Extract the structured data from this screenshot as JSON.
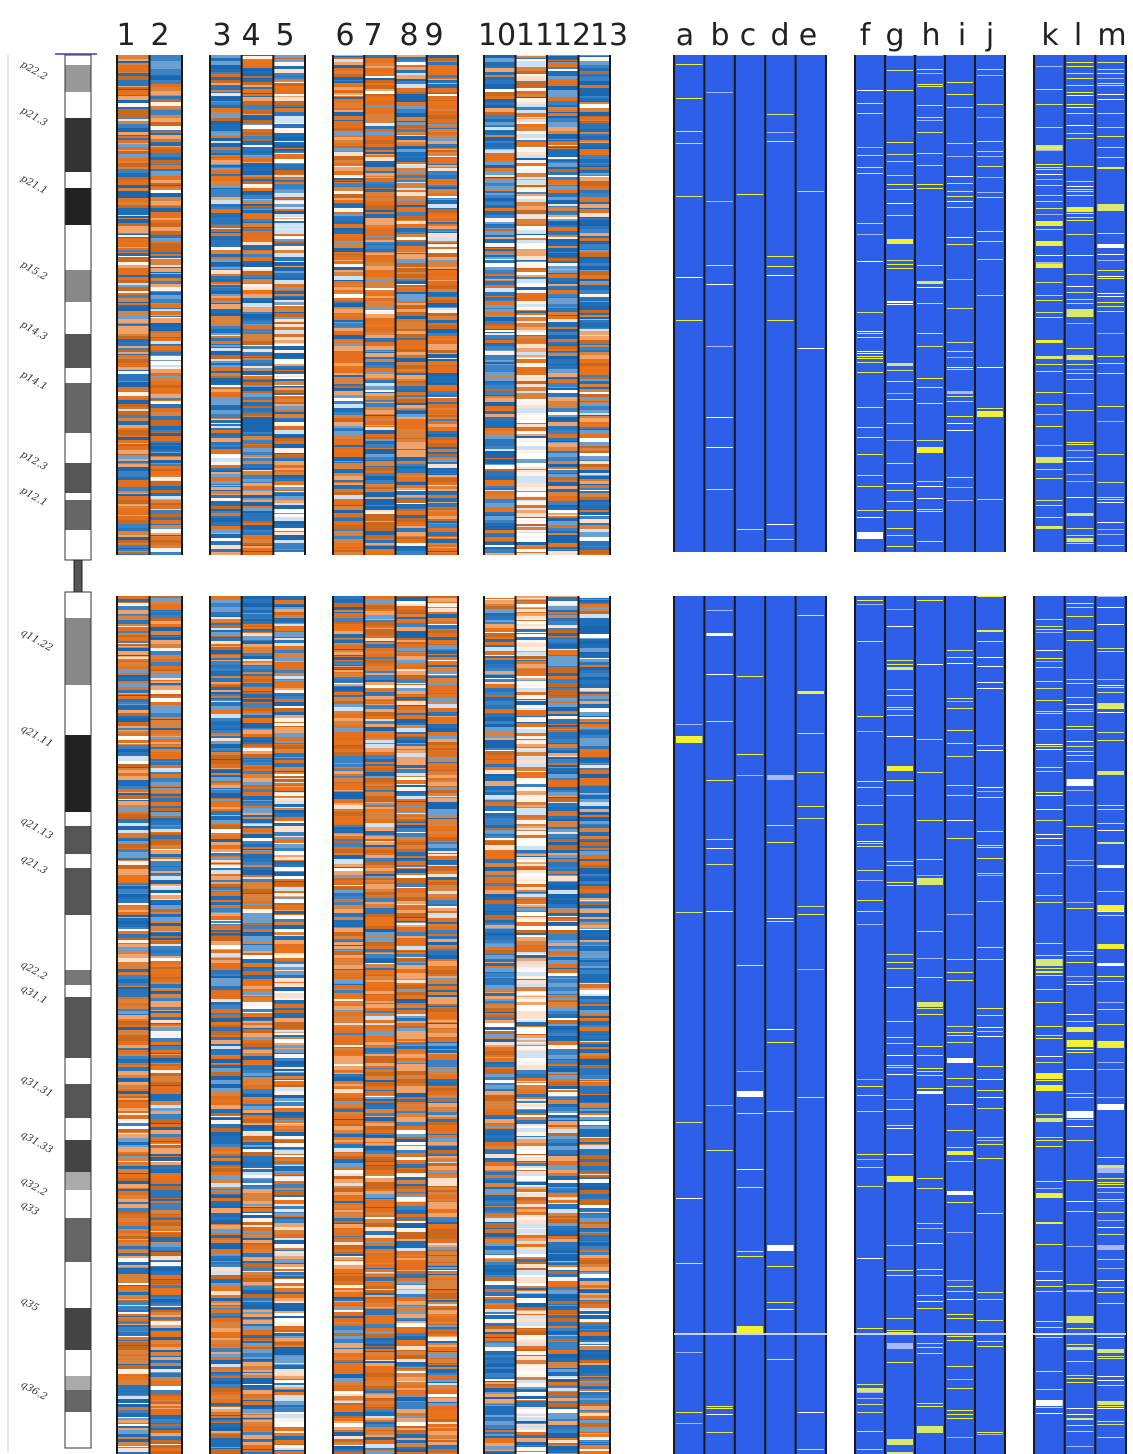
{
  "columns_left": [
    "1",
    "2",
    "3",
    "4",
    "5",
    "6",
    "7",
    "8",
    "9",
    "10",
    "11",
    "12",
    "13"
  ],
  "columns_right": [
    "a",
    "b",
    "c",
    "d",
    "e",
    "f",
    "g",
    "h",
    "i",
    "j",
    "k",
    "l",
    "m"
  ],
  "ideogram_bands": [
    "p22.2",
    "p21.3",
    "p21.1",
    "p15.2",
    "p14.3",
    "p14.1",
    "p12.3",
    "p12.1",
    "q11.22",
    "q21.11",
    "q21.13",
    "q21.3",
    "q22.2",
    "q31.1",
    "q31.31",
    "q31.33",
    "q32.2",
    "q33",
    "q35",
    "q36.2"
  ],
  "colors": {
    "heat_blue": "#1f6fb8",
    "heat_orange": "#e8731a",
    "heat_white": "#fff3ea",
    "track_blue": "#2e5fe8",
    "track_yellow": "#f2f230",
    "divider": "#1a1a1a"
  }
}
